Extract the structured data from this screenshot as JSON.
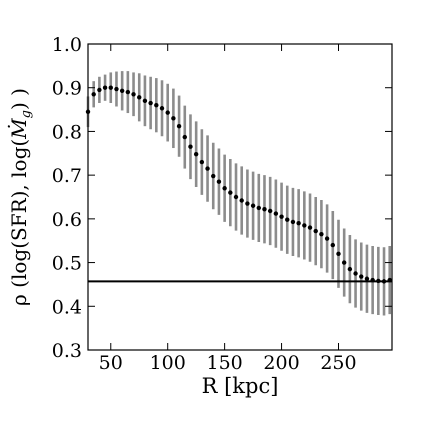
{
  "chart_data": {
    "type": "scatter",
    "xlabel": "R [kpc]",
    "ylabel": "ρ (log(SFR), log(Ṁ_g) )",
    "ylabel_parts": {
      "prefix": "ρ (log(SFR), log(",
      "mdot": "Ṁ",
      "sub": "g",
      "suffix": ") )"
    },
    "xlim": [
      30,
      297
    ],
    "ylim": [
      0.3,
      1.0
    ],
    "xticks": [
      50,
      100,
      150,
      200,
      250
    ],
    "xtick_labels": [
      "50",
      "100",
      "150",
      "200",
      "250"
    ],
    "yticks": [
      0.3,
      0.4,
      0.5,
      0.6,
      0.7,
      0.8,
      0.9,
      1.0
    ],
    "ytick_labels": [
      "0.3",
      "0.4",
      "0.5",
      "0.6",
      "0.7",
      "0.8",
      "0.9",
      "1.0"
    ],
    "hline": 0.457,
    "grid": false,
    "series": [
      {
        "x": [
          30,
          35,
          40,
          45,
          50,
          55,
          60,
          65,
          70,
          75,
          80,
          85,
          90,
          95,
          100,
          105,
          110,
          115,
          120,
          125,
          130,
          135,
          140,
          145,
          150,
          155,
          160,
          165,
          170,
          175,
          180,
          185,
          190,
          195,
          200,
          205,
          210,
          215,
          220,
          225,
          230,
          235,
          240,
          245,
          250,
          255,
          260,
          265,
          270,
          275,
          280,
          285,
          290,
          295
        ],
        "y": [
          0.845,
          0.885,
          0.895,
          0.9,
          0.9,
          0.897,
          0.893,
          0.89,
          0.885,
          0.878,
          0.87,
          0.865,
          0.86,
          0.853,
          0.843,
          0.83,
          0.812,
          0.787,
          0.765,
          0.748,
          0.73,
          0.715,
          0.698,
          0.685,
          0.67,
          0.66,
          0.65,
          0.642,
          0.635,
          0.63,
          0.625,
          0.622,
          0.618,
          0.612,
          0.605,
          0.598,
          0.593,
          0.59,
          0.585,
          0.58,
          0.572,
          0.565,
          0.555,
          0.54,
          0.52,
          0.5,
          0.485,
          0.475,
          0.468,
          0.463,
          0.46,
          0.458,
          0.457,
          0.46
        ],
        "err": [
          0.035,
          0.03,
          0.03,
          0.03,
          0.035,
          0.04,
          0.045,
          0.048,
          0.05,
          0.055,
          0.058,
          0.06,
          0.062,
          0.064,
          0.066,
          0.068,
          0.07,
          0.072,
          0.074,
          0.075,
          0.075,
          0.076,
          0.076,
          0.076,
          0.077,
          0.077,
          0.077,
          0.078,
          0.078,
          0.078,
          0.078,
          0.078,
          0.078,
          0.078,
          0.078,
          0.078,
          0.078,
          0.078,
          0.078,
          0.078,
          0.078,
          0.078,
          0.078,
          0.078,
          0.078,
          0.078,
          0.078,
          0.078,
          0.078,
          0.078,
          0.078,
          0.078,
          0.078,
          0.078
        ]
      }
    ]
  }
}
